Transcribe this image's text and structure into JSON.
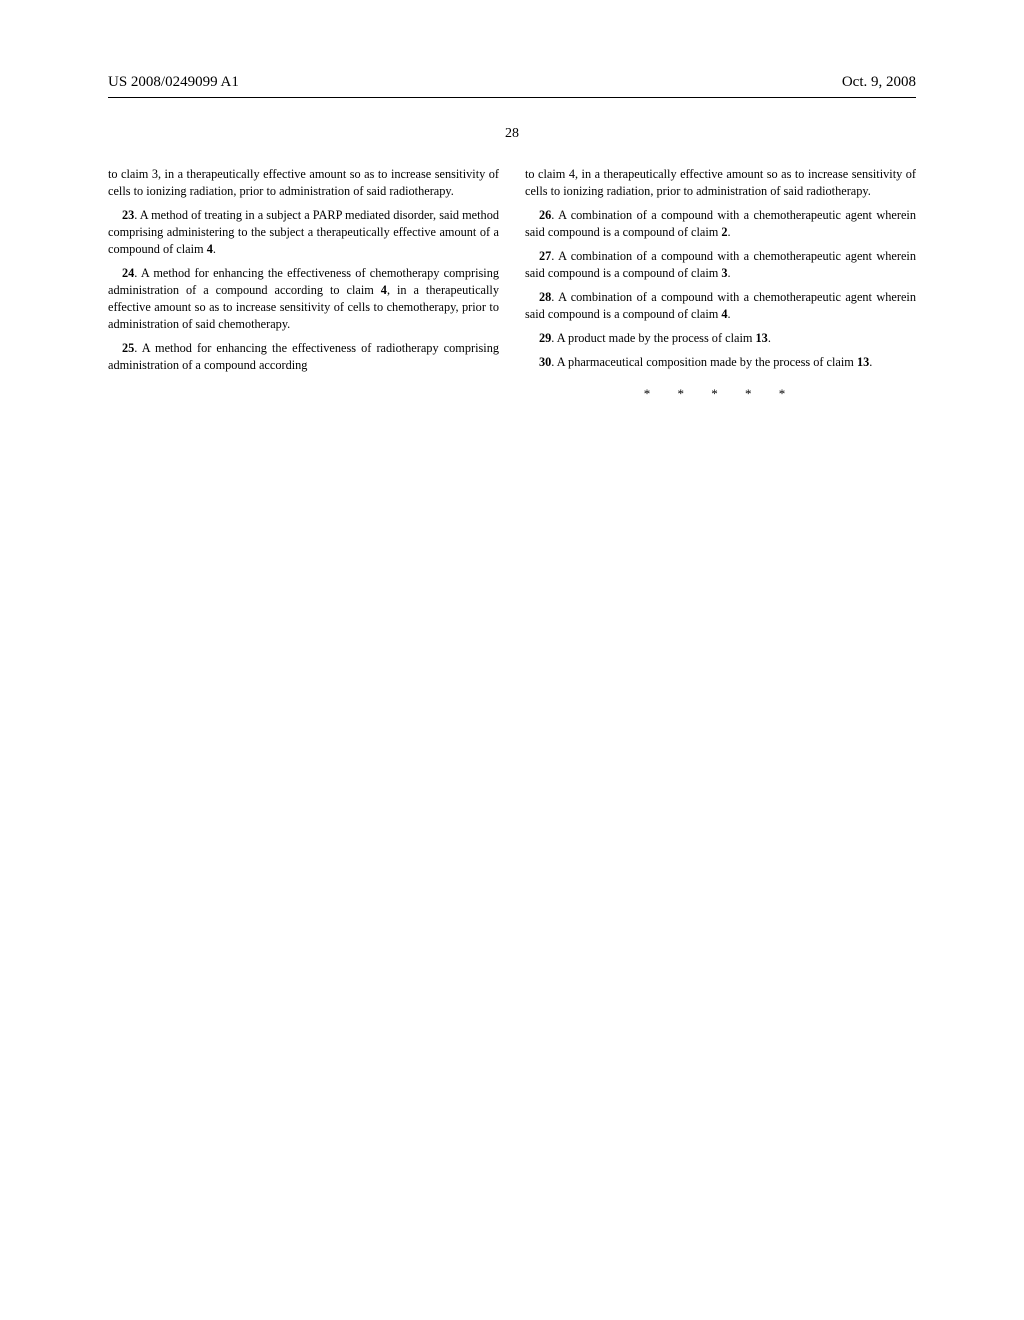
{
  "header": {
    "pub_number": "US 2008/0249099 A1",
    "date": "Oct. 9, 2008"
  },
  "page_number": "28",
  "left_column": {
    "continuation": "to claim 3, in a therapeutically effective amount so as to increase sensitivity of cells to ionizing radiation, prior to administration of said radiotherapy.",
    "claim23_num": "23",
    "claim23_text": ". A method of treating in a subject a PARP mediated disorder, said method comprising administering to the subject a therapeutically effective amount of a compound of claim ",
    "claim23_ref": "4",
    "claim23_end": ".",
    "claim24_num": "24",
    "claim24_text": ". A method for enhancing the effectiveness of chemotherapy comprising administration of a compound according to claim ",
    "claim24_ref": "4",
    "claim24_end": ", in a therapeutically effective amount so as to increase sensitivity of cells to chemotherapy, prior to administration of said chemotherapy.",
    "claim25_num": "25",
    "claim25_text": ". A method for enhancing the effectiveness of radiotherapy comprising administration of a compound according"
  },
  "right_column": {
    "continuation": "to claim 4, in a therapeutically effective amount so as to increase sensitivity of cells to ionizing radiation, prior to administration of said radiotherapy.",
    "claim26_num": "26",
    "claim26_text": ". A combination of a compound with a chemotherapeutic agent wherein said compound is a compound of claim ",
    "claim26_ref": "2",
    "claim26_end": ".",
    "claim27_num": "27",
    "claim27_text": ". A combination of a compound with a chemotherapeutic agent wherein said compound is a compound of claim ",
    "claim27_ref": "3",
    "claim27_end": ".",
    "claim28_num": "28",
    "claim28_text": ". A combination of a compound with a chemotherapeutic agent wherein said compound is a compound of claim ",
    "claim28_ref": "4",
    "claim28_end": ".",
    "claim29_num": "29",
    "claim29_text": ". A product made by the process of claim ",
    "claim29_ref": "13",
    "claim29_end": ".",
    "claim30_num": "30",
    "claim30_text": ". A pharmaceutical composition made by the process of claim ",
    "claim30_ref": "13",
    "claim30_end": "."
  },
  "end_marks": "* * * * *"
}
